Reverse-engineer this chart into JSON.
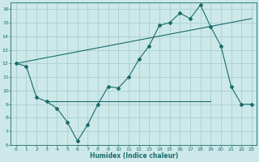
{
  "xlabel": "Humidex (Indice chaleur)",
  "bg_color": "#cce8e8",
  "grid_color": "#aad0d0",
  "line_color": "#1a6b6b",
  "xlim": [
    -0.5,
    23.5
  ],
  "ylim": [
    6,
    16.5
  ],
  "xticks": [
    0,
    1,
    2,
    3,
    4,
    5,
    6,
    7,
    8,
    9,
    10,
    11,
    12,
    13,
    14,
    15,
    16,
    17,
    18,
    19,
    20,
    21,
    22,
    23
  ],
  "yticks": [
    6,
    7,
    8,
    9,
    10,
    11,
    12,
    13,
    14,
    15,
    16
  ],
  "series1_x": [
    0,
    1,
    2,
    3,
    4,
    5,
    6,
    7,
    8,
    9,
    10,
    11,
    12,
    13,
    14,
    15,
    16,
    17,
    18,
    19,
    20,
    21,
    22,
    23
  ],
  "series1_y": [
    12,
    11.8,
    9.5,
    9.2,
    8.7,
    7.7,
    6.3,
    7.5,
    9.0,
    10.3,
    10.2,
    11.0,
    12.3,
    13.3,
    14.8,
    15.0,
    15.7,
    15.3,
    16.3,
    14.7,
    13.3,
    10.3,
    9.0,
    9.0
  ],
  "series2_x": [
    0,
    23
  ],
  "series2_y": [
    12,
    15.3
  ],
  "series3_x": [
    3,
    19
  ],
  "series3_y": [
    9.2,
    9.2
  ]
}
